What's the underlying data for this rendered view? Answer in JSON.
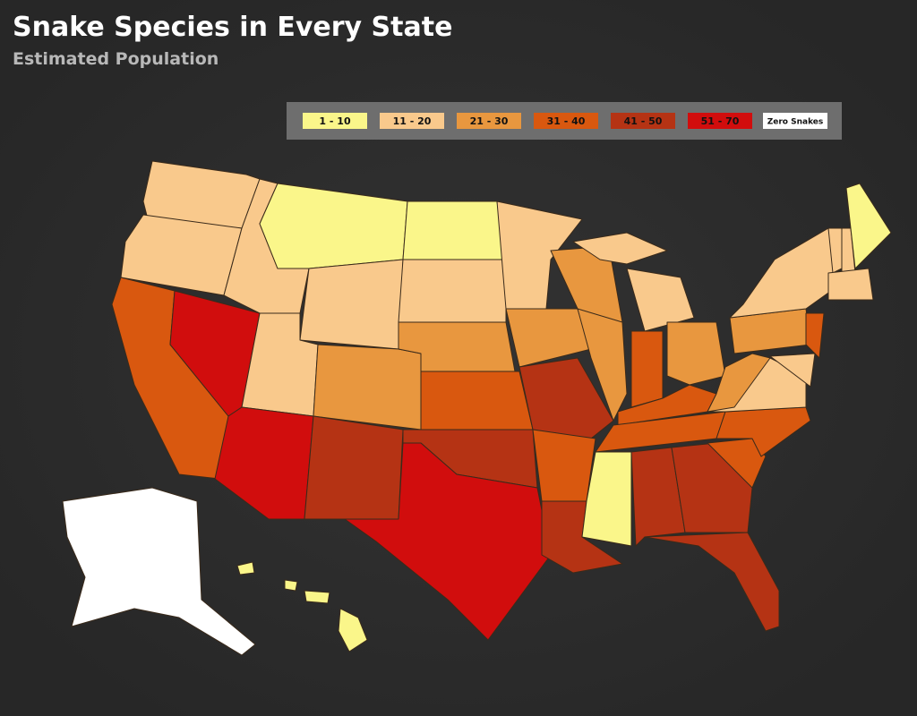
{
  "header": {
    "title": "Snake Species in Every State",
    "subtitle": "Estimated Population"
  },
  "legend": {
    "items": [
      {
        "label": "1 - 10",
        "color": "#faf68a"
      },
      {
        "label": "11 - 20",
        "color": "#f9c98c"
      },
      {
        "label": "21 - 30",
        "color": "#e8973f"
      },
      {
        "label": "31 - 40",
        "color": "#d9580f"
      },
      {
        "label": "41 - 50",
        "color": "#b53314"
      },
      {
        "label": "51 - 70",
        "color": "#d10d0d"
      },
      {
        "label": "Zero Snakes",
        "color": "#ffffff"
      }
    ]
  }
}
